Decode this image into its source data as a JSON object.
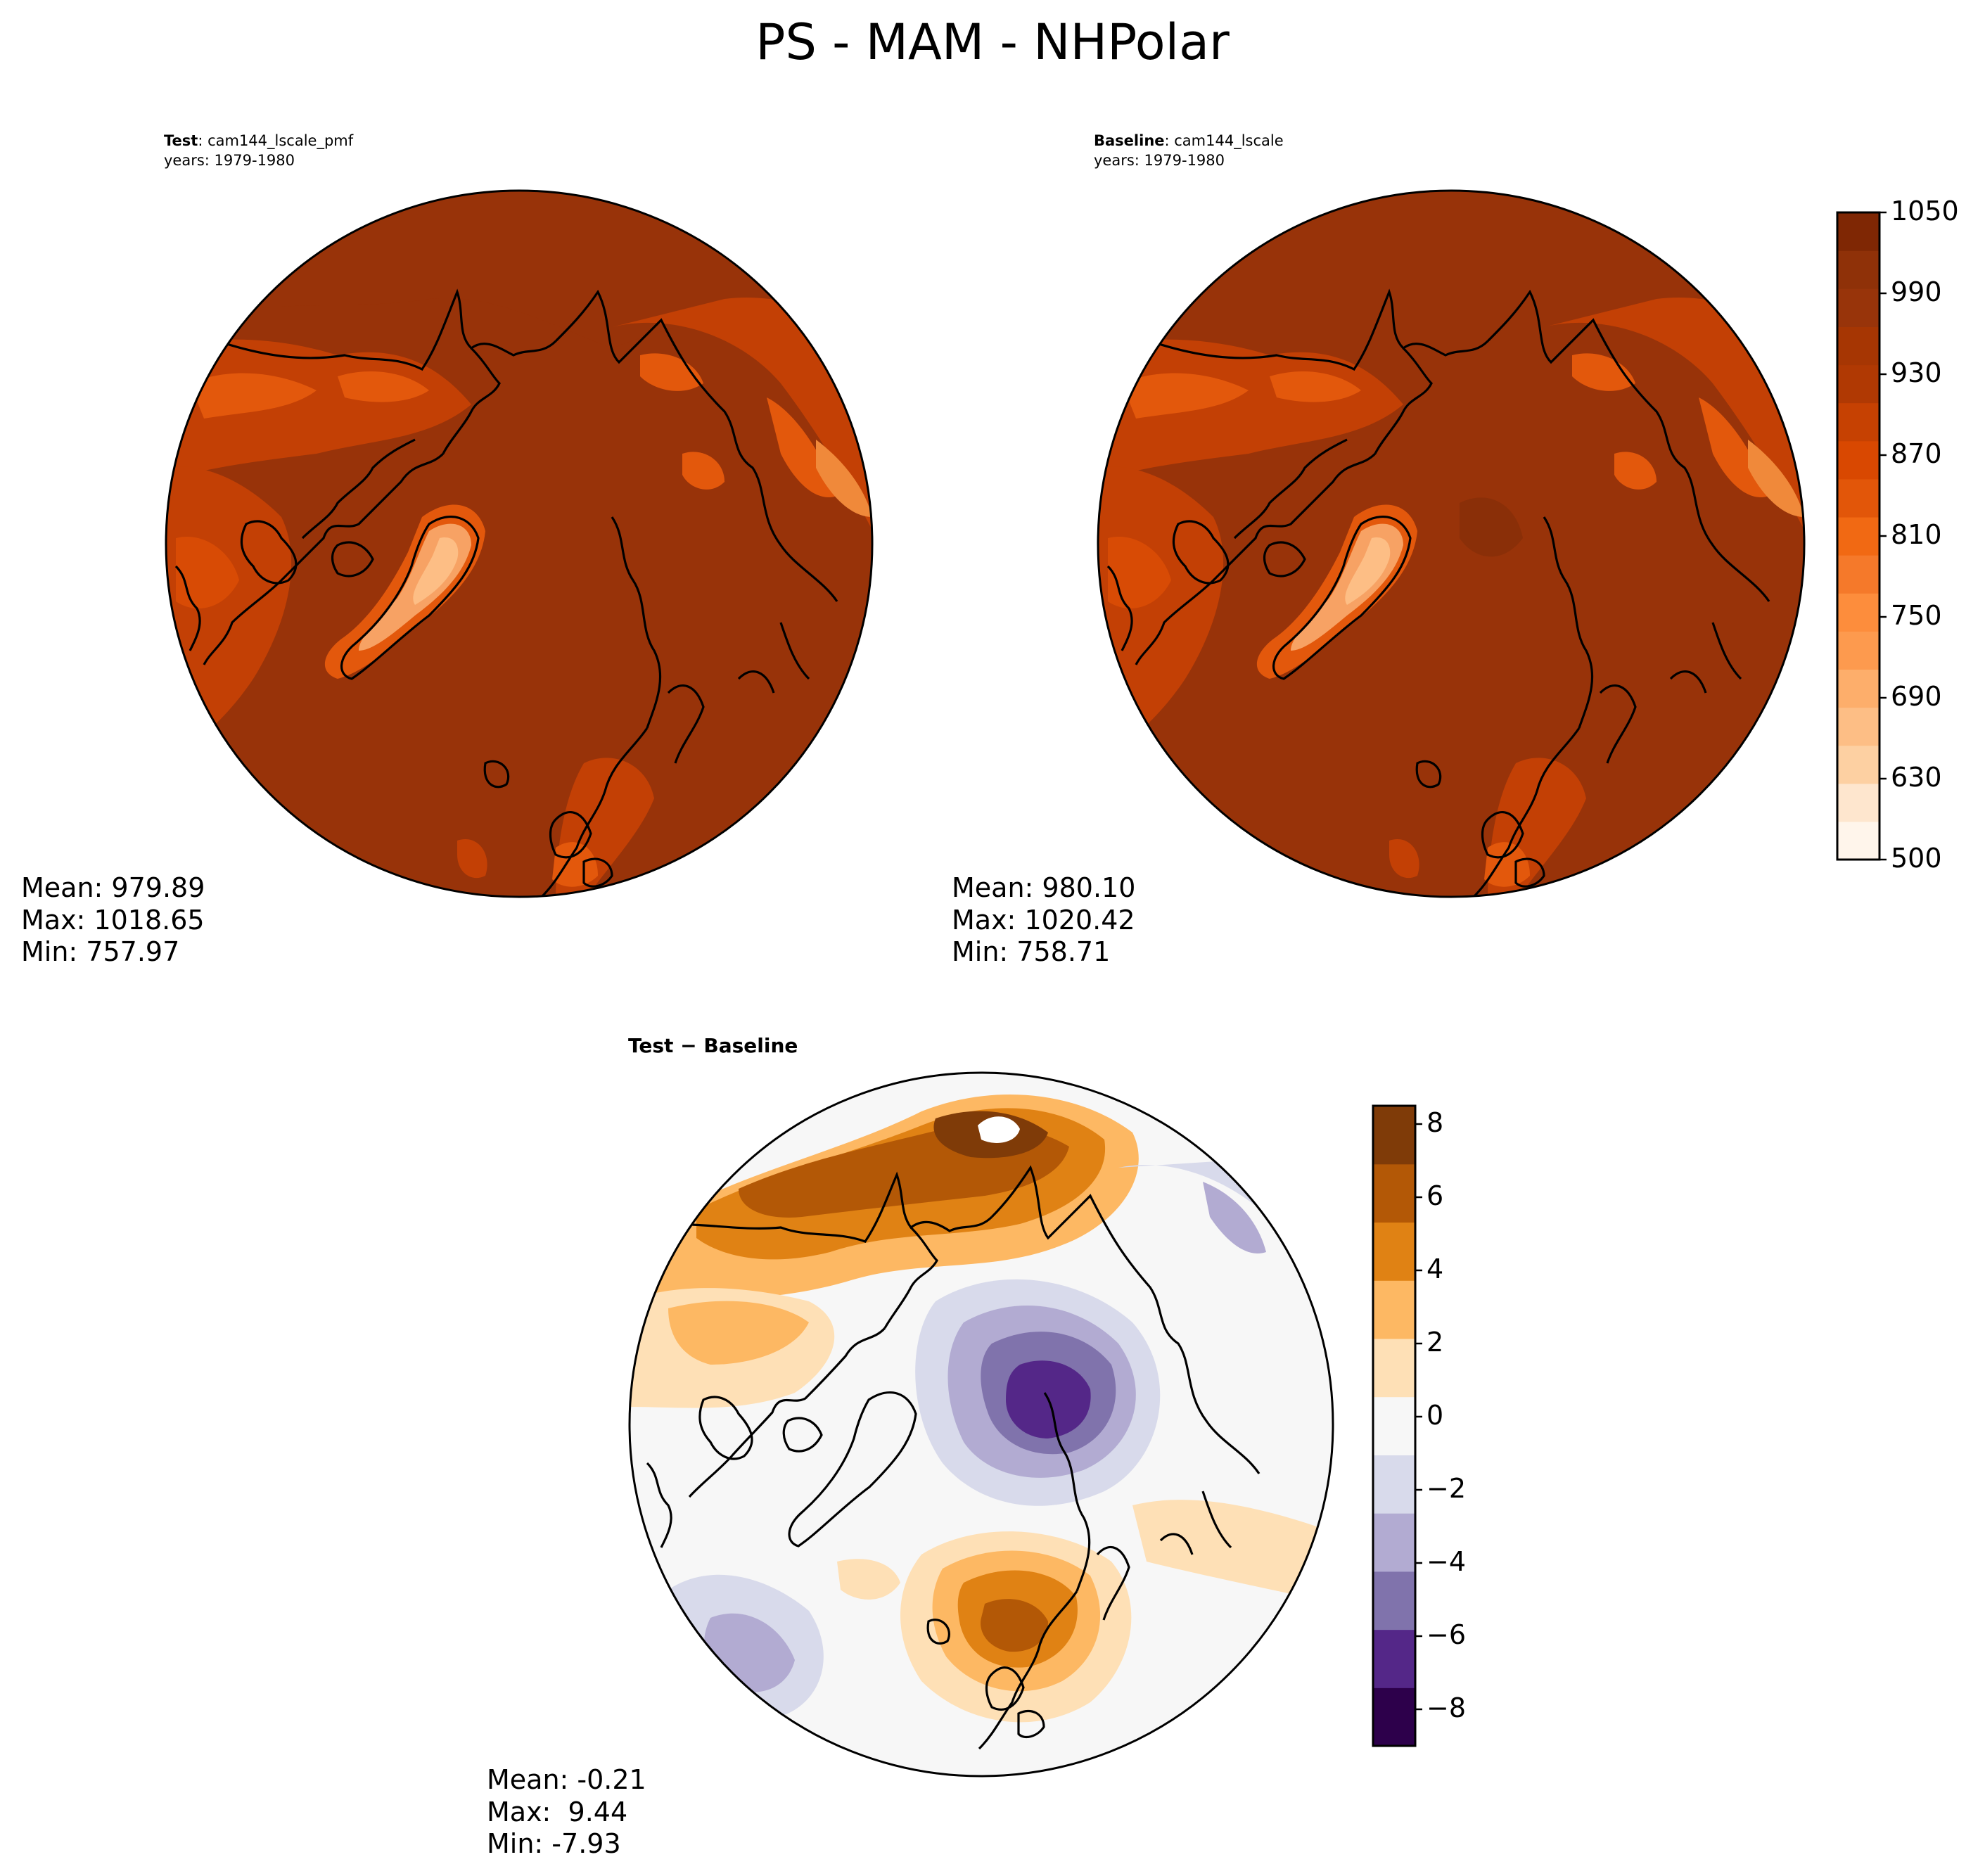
{
  "figure": {
    "title": "PS - MAM - NHPolar"
  },
  "panels": {
    "test": {
      "label_bold": "Test",
      "label_case": ": cam144_lscale_pmf",
      "years": "years: 1979-1980",
      "mean": "Mean: 979.89",
      "max": "Max: 1018.65",
      "min": "Min: 757.97"
    },
    "baseline": {
      "label_bold": "Baseline",
      "label_case": ": cam144_lscale",
      "years": "years: 1979-1980",
      "mean": "Mean: 980.10",
      "max": "Max: 1020.42",
      "min": "Min: 758.71"
    },
    "diff": {
      "title": "Test − Baseline",
      "mean": "Mean: -0.21",
      "max": "Max:  9.44",
      "min": "Min: -7.93"
    }
  },
  "colorbars": {
    "main": {
      "ticks": [
        "500",
        "630",
        "690",
        "750",
        "810",
        "870",
        "930",
        "990",
        "1050"
      ],
      "colors": [
        "#fff5eb",
        "#fee6ce",
        "#fdd0a2",
        "#fdbe85",
        "#fdae6b",
        "#fd9a4e",
        "#fd8d3c",
        "#f5792a",
        "#f16913",
        "#e25609",
        "#d94801",
        "#c64102",
        "#b03903",
        "#a63603",
        "#98340a",
        "#8f3108",
        "#7f2704"
      ]
    },
    "diff": {
      "ticks": [
        "−8",
        "−6",
        "−4",
        "−2",
        "0",
        "2",
        "4",
        "6",
        "8"
      ],
      "colors": [
        "#2d004b",
        "#542788",
        "#8073ac",
        "#b2abd2",
        "#d8daeb",
        "#f7f7f7",
        "#fee0b6",
        "#fdb863",
        "#e08214",
        "#b35806",
        "#7f3b08"
      ]
    }
  },
  "map_colors": {
    "coast": "#000000",
    "ocean_high": "#983309",
    "mid": "#c34005",
    "land_mid": "#e3580c",
    "greenland": "#fdb982"
  }
}
